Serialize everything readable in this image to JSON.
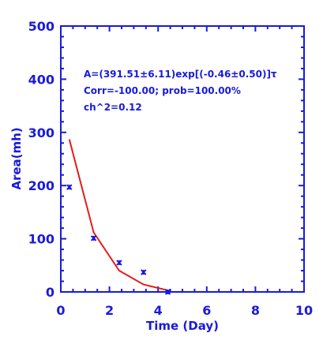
{
  "chart_data": {
    "type": "scatter",
    "title": "",
    "xlabel": "Time (Day)",
    "ylabel": "Area(mh)",
    "xlim": [
      0,
      10
    ],
    "ylim": [
      0,
      500
    ],
    "x_ticks": [
      "0",
      "2",
      "4",
      "6",
      "8",
      "10"
    ],
    "y_ticks": [
      "0",
      "100",
      "200",
      "300",
      "400",
      "500"
    ],
    "annotations": [
      "A=(391.51±6.11)exp[(-0.46±0.50)]τ",
      "Corr=-100.00;   prob=100.00%",
      "ch^2=0.12"
    ],
    "series": [
      {
        "type": "scatter",
        "values": [
          {
            "x": 0.35,
            "y": 197
          },
          {
            "x": 1.35,
            "y": 101
          },
          {
            "x": 2.4,
            "y": 55
          },
          {
            "x": 3.4,
            "y": 37
          },
          {
            "x": 4.4,
            "y": 0
          }
        ]
      },
      {
        "type": "line",
        "values": [
          {
            "x": 0.35,
            "y": 287
          },
          {
            "x": 1.35,
            "y": 112
          },
          {
            "x": 2.4,
            "y": 40
          },
          {
            "x": 3.4,
            "y": 14
          },
          {
            "x": 4.4,
            "y": 3
          }
        ]
      }
    ],
    "colors": {
      "axes": "#1a1adb",
      "fit": "#e31d1d",
      "points": "#1a1adb"
    },
    "grid": false
  }
}
